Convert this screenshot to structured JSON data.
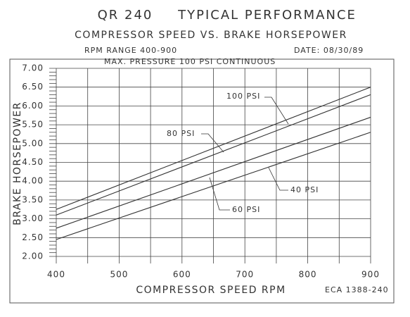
{
  "chart_data": {
    "type": "line",
    "title": "QR 240",
    "title_right": "TYPICAL PERFORMANCE",
    "subtitle": "COMPRESSOR SPEED VS. BRAKE HORSEPOWER",
    "note_left": "RPM RANGE 400-900",
    "note_right": "DATE: 08/30/89",
    "note_pressure": "MAX. PRESSURE 100 PSI CONTINUOUS",
    "xlabel": "COMPRESSOR SPEED RPM",
    "ylabel": "BRAKE HORSEPOWER",
    "drawing_number": "ECA 1388-240",
    "x": [
      400,
      900
    ],
    "series": [
      {
        "name": "100 PSI",
        "color": "#333333",
        "values": [
          3.25,
          6.5
        ]
      },
      {
        "name": "80 PSI",
        "color": "#333333",
        "values": [
          3.1,
          6.3
        ]
      },
      {
        "name": "60 PSI",
        "color": "#333333",
        "values": [
          2.75,
          5.7
        ]
      },
      {
        "name": "40 PSI",
        "color": "#333333",
        "values": [
          2.45,
          5.3
        ]
      }
    ],
    "xlim": [
      400,
      900
    ],
    "xticks": [
      400,
      500,
      600,
      700,
      800,
      900
    ],
    "xminor": [
      450,
      550,
      650,
      750,
      850
    ],
    "ylim": [
      2,
      7
    ],
    "yticks": [
      {
        "value": 2,
        "label": "2.00"
      },
      {
        "value": 2.5,
        "label": "2.50"
      },
      {
        "value": 3,
        "label": "3.00"
      },
      {
        "value": 3.5,
        "label": "3.50"
      },
      {
        "value": 4,
        "label": "4.00"
      },
      {
        "value": 4.5,
        "label": "4.50"
      },
      {
        "value": 5,
        "label": "5.00"
      },
      {
        "value": 5.5,
        "label": "5.50"
      },
      {
        "value": 6,
        "label": "6.00"
      },
      {
        "value": 6.5,
        "label": "6.50"
      },
      {
        "value": 7,
        "label": "7.00"
      }
    ],
    "yminor": [
      2.1,
      2.2,
      2.3,
      2.4,
      2.6,
      2.7,
      2.8,
      2.9,
      3.1,
      3.2,
      3.3,
      3.4,
      3.6,
      3.7,
      3.8,
      3.9,
      4.1,
      4.2,
      4.3,
      4.4,
      4.6,
      4.7,
      4.8,
      4.9,
      5.1,
      5.2,
      5.3,
      5.4,
      5.6,
      5.7,
      5.8,
      5.9,
      6.1,
      6.2,
      6.3,
      6.4,
      6.6,
      6.7,
      6.8,
      6.9
    ],
    "grid": true
  }
}
